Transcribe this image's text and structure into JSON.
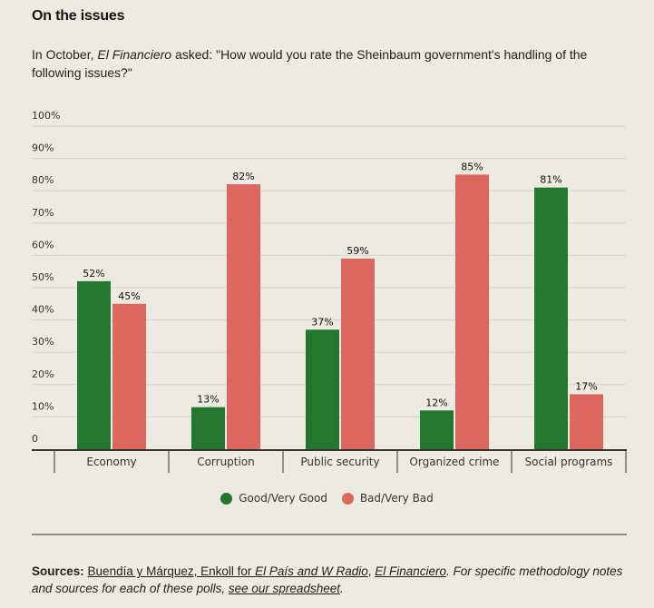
{
  "header": {
    "title": "On the issues",
    "subtitle_pre": "In October, ",
    "subtitle_em": "El Financiero",
    "subtitle_post": " asked: \"How would you rate the Sheinbaum government's handling of the following issues?\""
  },
  "chart_data": {
    "type": "bar",
    "title": "On the issues",
    "xlabel": "",
    "ylabel": "",
    "ylim": [
      0,
      100
    ],
    "yticks": [
      0,
      10,
      20,
      30,
      40,
      50,
      60,
      70,
      80,
      90,
      100
    ],
    "ytick_labels": [
      "0",
      "10%",
      "20%",
      "30%",
      "40%",
      "50%",
      "60%",
      "70%",
      "80%",
      "90%",
      "100%"
    ],
    "grid": true,
    "legend_position": "bottom-center",
    "categories": [
      "Economy",
      "Corruption",
      "Public security",
      "Organized crime",
      "Social programs"
    ],
    "series": [
      {
        "name": "Good/Very Good",
        "color": "#23772f",
        "values": [
          52,
          13,
          37,
          12,
          81
        ]
      },
      {
        "name": "Bad/Very Bad",
        "color": "#db675e",
        "values": [
          45,
          82,
          59,
          85,
          17
        ]
      }
    ],
    "value_suffix": "%"
  },
  "footer": {
    "sources_label": "Sources:",
    "link1": "Buendía y Márquez, Enkoll for ",
    "link1_em": "El País and W Radio",
    "sep": ", ",
    "link2": "El Financiero",
    "note": ". For specific methodology notes and sources for each of these polls, ",
    "link3": "see our spreadsheet",
    "end": "."
  }
}
